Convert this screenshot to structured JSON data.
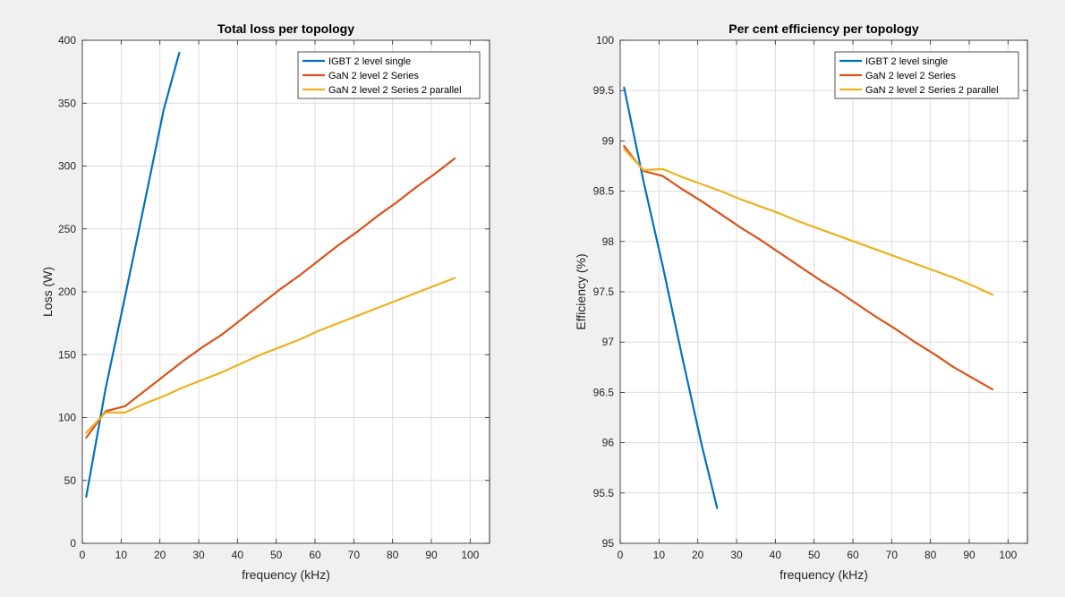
{
  "chart_data": [
    {
      "type": "line",
      "title": "Total loss per topology",
      "xlabel": "frequency (kHz)",
      "ylabel": "Loss (W)",
      "xlim": [
        0,
        105
      ],
      "ylim": [
        0,
        400
      ],
      "xticks": [
        0,
        10,
        20,
        30,
        40,
        50,
        60,
        70,
        80,
        90,
        100
      ],
      "yticks": [
        0,
        50,
        100,
        150,
        200,
        250,
        300,
        350,
        400
      ],
      "grid": true,
      "legend_position": "top-right",
      "series": [
        {
          "name": "IGBT 2 level single",
          "color": "#0072BD",
          "x": [
            1,
            6,
            11,
            16,
            21,
            25
          ],
          "y": [
            37,
            123,
            196,
            270,
            345,
            390
          ]
        },
        {
          "name": "GaN 2 level 2 Series",
          "color": "#D95319",
          "x": [
            1,
            6,
            11,
            16,
            21,
            26,
            31,
            36,
            41,
            46,
            51,
            56,
            61,
            66,
            71,
            76,
            81,
            86,
            91,
            96
          ],
          "y": [
            84,
            105,
            109,
            121,
            133,
            145,
            156,
            166,
            178,
            190,
            202,
            213,
            225,
            237,
            248,
            260,
            271,
            283,
            294,
            306
          ]
        },
        {
          "name": "GaN 2 level 2 Series 2 parallel",
          "color": "#EDB120",
          "x": [
            1,
            6,
            11,
            16,
            21,
            26,
            31,
            36,
            41,
            46,
            51,
            56,
            61,
            66,
            71,
            76,
            81,
            86,
            91,
            96
          ],
          "y": [
            88,
            104,
            104,
            111,
            117,
            124,
            130,
            136,
            143,
            150,
            156,
            162,
            169,
            175,
            181,
            187,
            193,
            199,
            205,
            211
          ]
        }
      ]
    },
    {
      "type": "line",
      "title": "Per cent efficiency per topology",
      "xlabel": "frequency (kHz)",
      "ylabel": "Efficiency (%)",
      "xlim": [
        0,
        105
      ],
      "ylim": [
        95,
        100
      ],
      "xticks": [
        0,
        10,
        20,
        30,
        40,
        50,
        60,
        70,
        80,
        90,
        100
      ],
      "yticks": [
        95,
        95.5,
        96,
        96.5,
        97,
        97.5,
        98,
        98.5,
        99,
        99.5,
        100
      ],
      "grid": true,
      "legend_position": "top-right",
      "series": [
        {
          "name": "IGBT 2 level single",
          "color": "#0072BD",
          "x": [
            1,
            6,
            11,
            16,
            21,
            25
          ],
          "y": [
            99.53,
            98.6,
            97.75,
            96.85,
            95.98,
            95.35
          ]
        },
        {
          "name": "GaN 2 level 2 Series",
          "color": "#D95319",
          "x": [
            1,
            6,
            11,
            16,
            21,
            26,
            31,
            36,
            41,
            46,
            51,
            56,
            61,
            66,
            71,
            76,
            81,
            86,
            91,
            96
          ],
          "y": [
            98.95,
            98.7,
            98.65,
            98.52,
            98.4,
            98.27,
            98.14,
            98.02,
            97.89,
            97.76,
            97.63,
            97.51,
            97.38,
            97.25,
            97.13,
            97.0,
            96.88,
            96.75,
            96.64,
            96.53
          ]
        },
        {
          "name": "GaN 2 level 2 Series 2 parallel",
          "color": "#EDB120",
          "x": [
            1,
            6,
            11,
            16,
            21,
            26,
            31,
            36,
            41,
            46,
            51,
            56,
            61,
            66,
            71,
            76,
            81,
            86,
            91,
            96
          ],
          "y": [
            98.92,
            98.71,
            98.72,
            98.64,
            98.57,
            98.5,
            98.42,
            98.35,
            98.28,
            98.2,
            98.13,
            98.06,
            97.99,
            97.92,
            97.85,
            97.78,
            97.71,
            97.64,
            97.56,
            97.47
          ]
        }
      ]
    }
  ]
}
